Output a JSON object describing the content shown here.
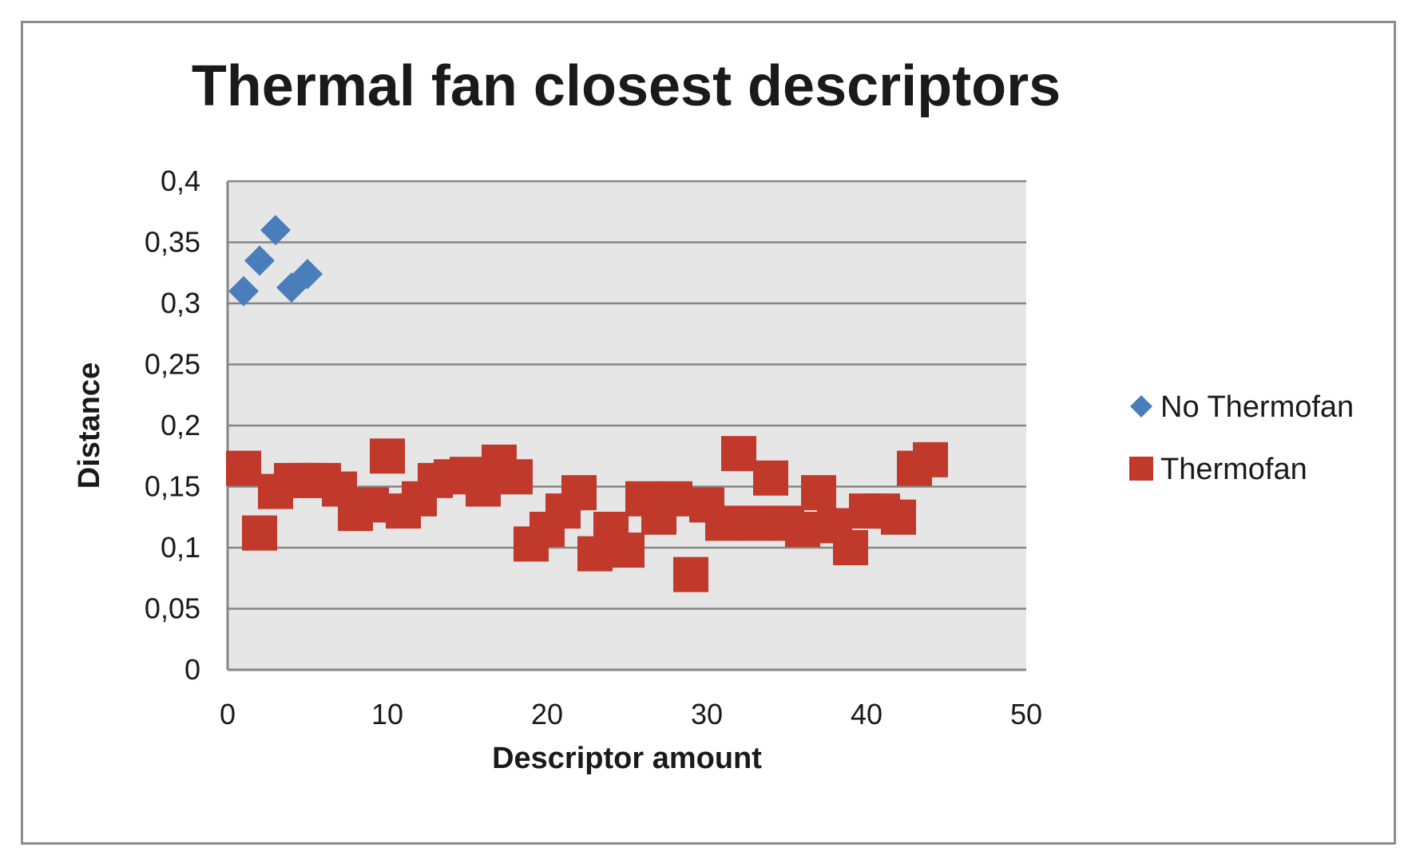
{
  "chart_data": {
    "type": "scatter",
    "title": "Thermal fan closest descriptors",
    "xlabel": "Descriptor amount",
    "ylabel": "Distance",
    "xlim": [
      0,
      50
    ],
    "ylim": [
      0,
      0.4
    ],
    "x_ticks": [
      "0",
      "10",
      "20",
      "30",
      "40",
      "50"
    ],
    "y_ticks": [
      "0",
      "0,05",
      "0,1",
      "0,15",
      "0,2",
      "0,25",
      "0,3",
      "0,35",
      "0,4"
    ],
    "grid": "horizontal",
    "legend_position": "right",
    "plot_background": "#e6e6e6",
    "series": [
      {
        "name": "No Thermofan",
        "marker": "diamond",
        "color": "#4a7ebb",
        "x": [
          1,
          2,
          3,
          4,
          5
        ],
        "y": [
          0.31,
          0.335,
          0.36,
          0.313,
          0.324
        ]
      },
      {
        "name": "Thermofan",
        "marker": "square",
        "color": "#c0392b",
        "x": [
          1,
          2,
          3,
          4,
          5,
          6,
          7,
          8,
          9,
          10,
          11,
          12,
          13,
          14,
          15,
          16,
          17,
          18,
          19,
          20,
          21,
          22,
          23,
          24,
          25,
          26,
          27,
          28,
          29,
          30,
          31,
          32,
          33,
          34,
          35,
          36,
          37,
          38,
          39,
          40,
          41,
          42,
          43,
          44
        ],
        "y": [
          0.165,
          0.112,
          0.146,
          0.155,
          0.155,
          0.155,
          0.148,
          0.128,
          0.135,
          0.175,
          0.13,
          0.14,
          0.155,
          0.158,
          0.16,
          0.148,
          0.17,
          0.158,
          0.103,
          0.115,
          0.13,
          0.145,
          0.095,
          0.115,
          0.098,
          0.14,
          0.125,
          0.14,
          0.078,
          0.135,
          0.12,
          0.177,
          0.12,
          0.157,
          0.12,
          0.115,
          0.145,
          0.118,
          0.1,
          0.13,
          0.13,
          0.125,
          0.165,
          0.172
        ]
      }
    ]
  }
}
